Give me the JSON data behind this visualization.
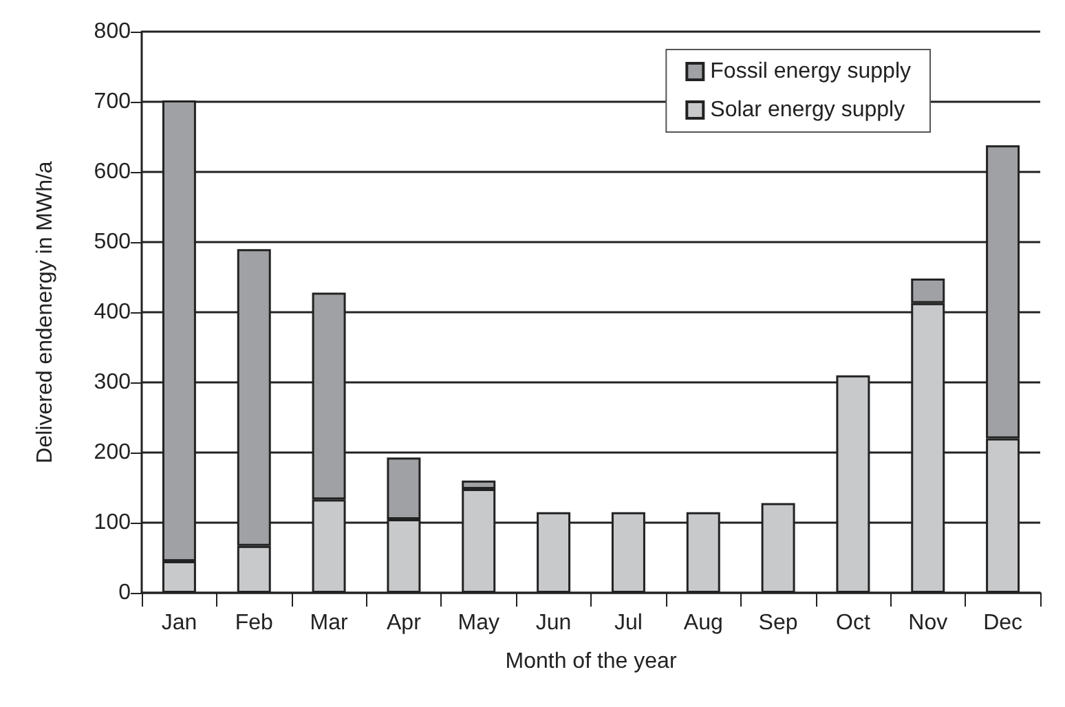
{
  "chart_data": {
    "type": "bar",
    "stacked": true,
    "xlabel": "Month of the year",
    "ylabel": "Delivered endenergy in MWh/a",
    "categories": [
      "Jan",
      "Feb",
      "Mar",
      "Apr",
      "May",
      "Jun",
      "Jul",
      "Aug",
      "Sep",
      "Oct",
      "Nov",
      "Dec"
    ],
    "series": [
      {
        "name": "Solar energy supply",
        "color": "#c8c9cb",
        "values": [
          45,
          67,
          133,
          105,
          148,
          115,
          115,
          115,
          128,
          310,
          413,
          220
        ]
      },
      {
        "name": "Fossil energy supply",
        "color": "#a0a1a4",
        "values": [
          657,
          423,
          295,
          88,
          12,
          null,
          null,
          null,
          null,
          null,
          35,
          418
        ]
      }
    ],
    "ylim": [
      0,
      800
    ],
    "yticks": [
      0,
      100,
      200,
      300,
      400,
      500,
      600,
      700,
      800
    ],
    "grid": "y",
    "legend": "top right"
  }
}
